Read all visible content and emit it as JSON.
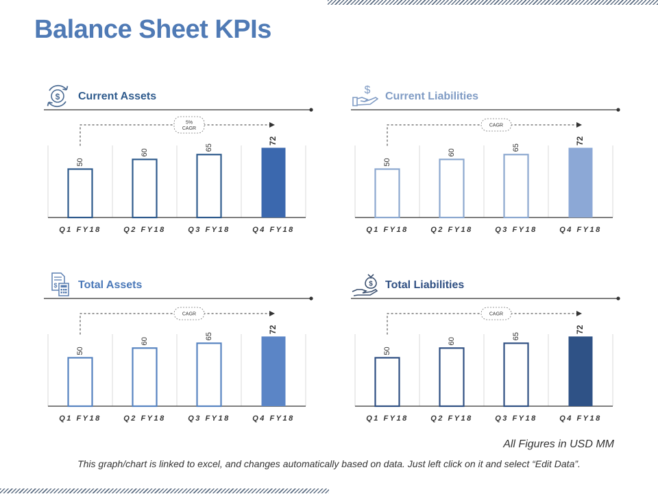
{
  "title": "Balance Sheet KPIs",
  "colors": {
    "title": "#4f7ab5",
    "grid": "#d9d9d9",
    "rule": "#333333",
    "text": "#333333"
  },
  "chart_data": [
    {
      "type": "bar",
      "title": "Current Assets",
      "icon": "dollar-cycle-icon",
      "title_color": "#2e5a8c",
      "bar_color": "#2e5a8c",
      "last_fill": "#3b68ae",
      "categories": [
        "Q1 FY18",
        "Q2 FY18",
        "Q3 FY18",
        "Q4 FY18"
      ],
      "values": [
        50,
        60,
        65,
        72
      ],
      "ylim": [
        0,
        90
      ],
      "cagr_label": [
        "5%",
        "CAGR"
      ]
    },
    {
      "type": "bar",
      "title": "Current Liabilities",
      "icon": "hand-dollar-icon",
      "title_color": "#7f9bc4",
      "bar_color": "#8ca8cf",
      "last_fill": "#8ca8d6",
      "categories": [
        "Q1 FY18",
        "Q2 FY18",
        "Q3 FY18",
        "Q4 FY18"
      ],
      "values": [
        50,
        60,
        65,
        72
      ],
      "ylim": [
        0,
        90
      ],
      "cagr_label": [
        "CAGR"
      ]
    },
    {
      "type": "bar",
      "title": "Total Assets",
      "icon": "ledger-calculator-icon",
      "title_color": "#4a78b8",
      "bar_color": "#5683c0",
      "last_fill": "#5b85c6",
      "categories": [
        "Q1 FY18",
        "Q2 FY18",
        "Q3 FY18",
        "Q4 FY18"
      ],
      "values": [
        50,
        60,
        65,
        72
      ],
      "ylim": [
        0,
        90
      ],
      "cagr_label": [
        "CAGR"
      ]
    },
    {
      "type": "bar",
      "title": "Total Liabilities",
      "icon": "hand-money-bag-icon",
      "title_color": "#2f4f82",
      "bar_color": "#2f4f82",
      "last_fill": "#2f5286",
      "categories": [
        "Q1 FY18",
        "Q2 FY18",
        "Q3 FY18",
        "Q4 FY18"
      ],
      "values": [
        50,
        60,
        65,
        72
      ],
      "ylim": [
        0,
        90
      ],
      "cagr_label": [
        "CAGR"
      ]
    }
  ],
  "units_note": "All Figures in USD MM",
  "footnote": "This graph/chart is linked to excel, and changes automatically based on data. Just left click on it and select “Edit Data”."
}
